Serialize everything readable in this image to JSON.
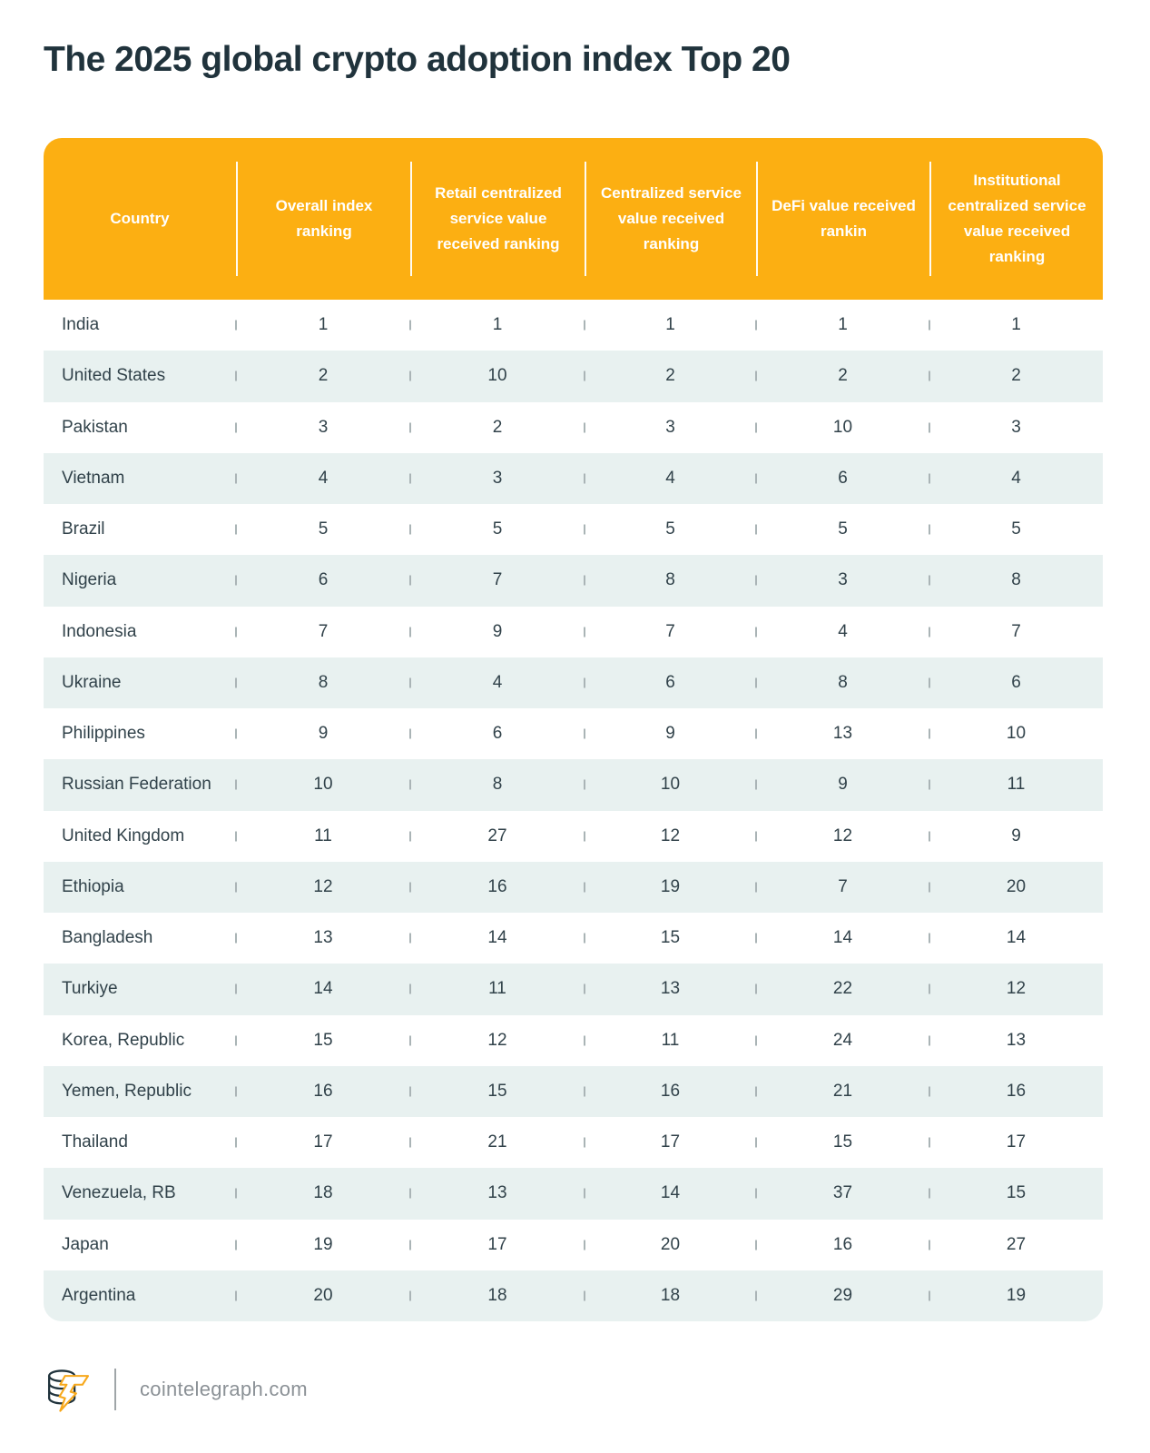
{
  "title": "The 2025 global crypto adoption index Top 20",
  "chart_data": {
    "type": "table",
    "title": "The 2025 global crypto adoption index Top 20",
    "columns": [
      "Country",
      "Overall index ranking",
      "Retail centralized service value received ranking",
      "Centralized service value received ranking",
      "DeFi value received rankin",
      "Institutional centralized service value received ranking"
    ],
    "rows": [
      {
        "country": "India",
        "values": [
          1,
          1,
          1,
          1,
          1
        ]
      },
      {
        "country": "United States",
        "values": [
          2,
          10,
          2,
          2,
          2
        ]
      },
      {
        "country": "Pakistan",
        "values": [
          3,
          2,
          3,
          10,
          3
        ]
      },
      {
        "country": "Vietnam",
        "values": [
          4,
          3,
          4,
          6,
          4
        ]
      },
      {
        "country": "Brazil",
        "values": [
          5,
          5,
          5,
          5,
          5
        ]
      },
      {
        "country": "Nigeria",
        "values": [
          6,
          7,
          8,
          3,
          8
        ]
      },
      {
        "country": "Indonesia",
        "values": [
          7,
          9,
          7,
          4,
          7
        ]
      },
      {
        "country": "Ukraine",
        "values": [
          8,
          4,
          6,
          8,
          6
        ]
      },
      {
        "country": "Philippines",
        "values": [
          9,
          6,
          9,
          13,
          10
        ]
      },
      {
        "country": "Russian Federation",
        "values": [
          10,
          8,
          10,
          9,
          11
        ]
      },
      {
        "country": "United Kingdom",
        "values": [
          11,
          27,
          12,
          12,
          9
        ]
      },
      {
        "country": "Ethiopia",
        "values": [
          12,
          16,
          19,
          7,
          20
        ]
      },
      {
        "country": "Bangladesh",
        "values": [
          13,
          14,
          15,
          14,
          14
        ]
      },
      {
        "country": "Turkiye",
        "values": [
          14,
          11,
          13,
          22,
          12
        ]
      },
      {
        "country": "Korea, Republic",
        "values": [
          15,
          12,
          11,
          24,
          13
        ]
      },
      {
        "country": "Yemen, Republic",
        "values": [
          16,
          15,
          16,
          21,
          16
        ]
      },
      {
        "country": "Thailand",
        "values": [
          17,
          21,
          17,
          15,
          17
        ]
      },
      {
        "country": "Venezuela, RB",
        "values": [
          18,
          13,
          14,
          37,
          15
        ]
      },
      {
        "country": "Japan",
        "values": [
          19,
          17,
          20,
          16,
          27
        ]
      },
      {
        "country": "Argentina",
        "values": [
          20,
          18,
          18,
          29,
          19
        ]
      }
    ],
    "layout": {
      "header_background": "#fcaf12",
      "alternate_row_background": "#e8f1f0",
      "grid": "off",
      "row_striping": "even rows shaded"
    }
  },
  "footer": {
    "site": "cointelegraph.com",
    "logo_icon": "cointelegraph-coins-bolt-icon"
  },
  "colors": {
    "header_bg": "#fcaf12",
    "row_alt_bg": "#e8f1f0",
    "title_text": "#20333c",
    "body_text": "#31424a",
    "accent_orange": "#f7a81b",
    "footer_text": "#8b9196"
  }
}
